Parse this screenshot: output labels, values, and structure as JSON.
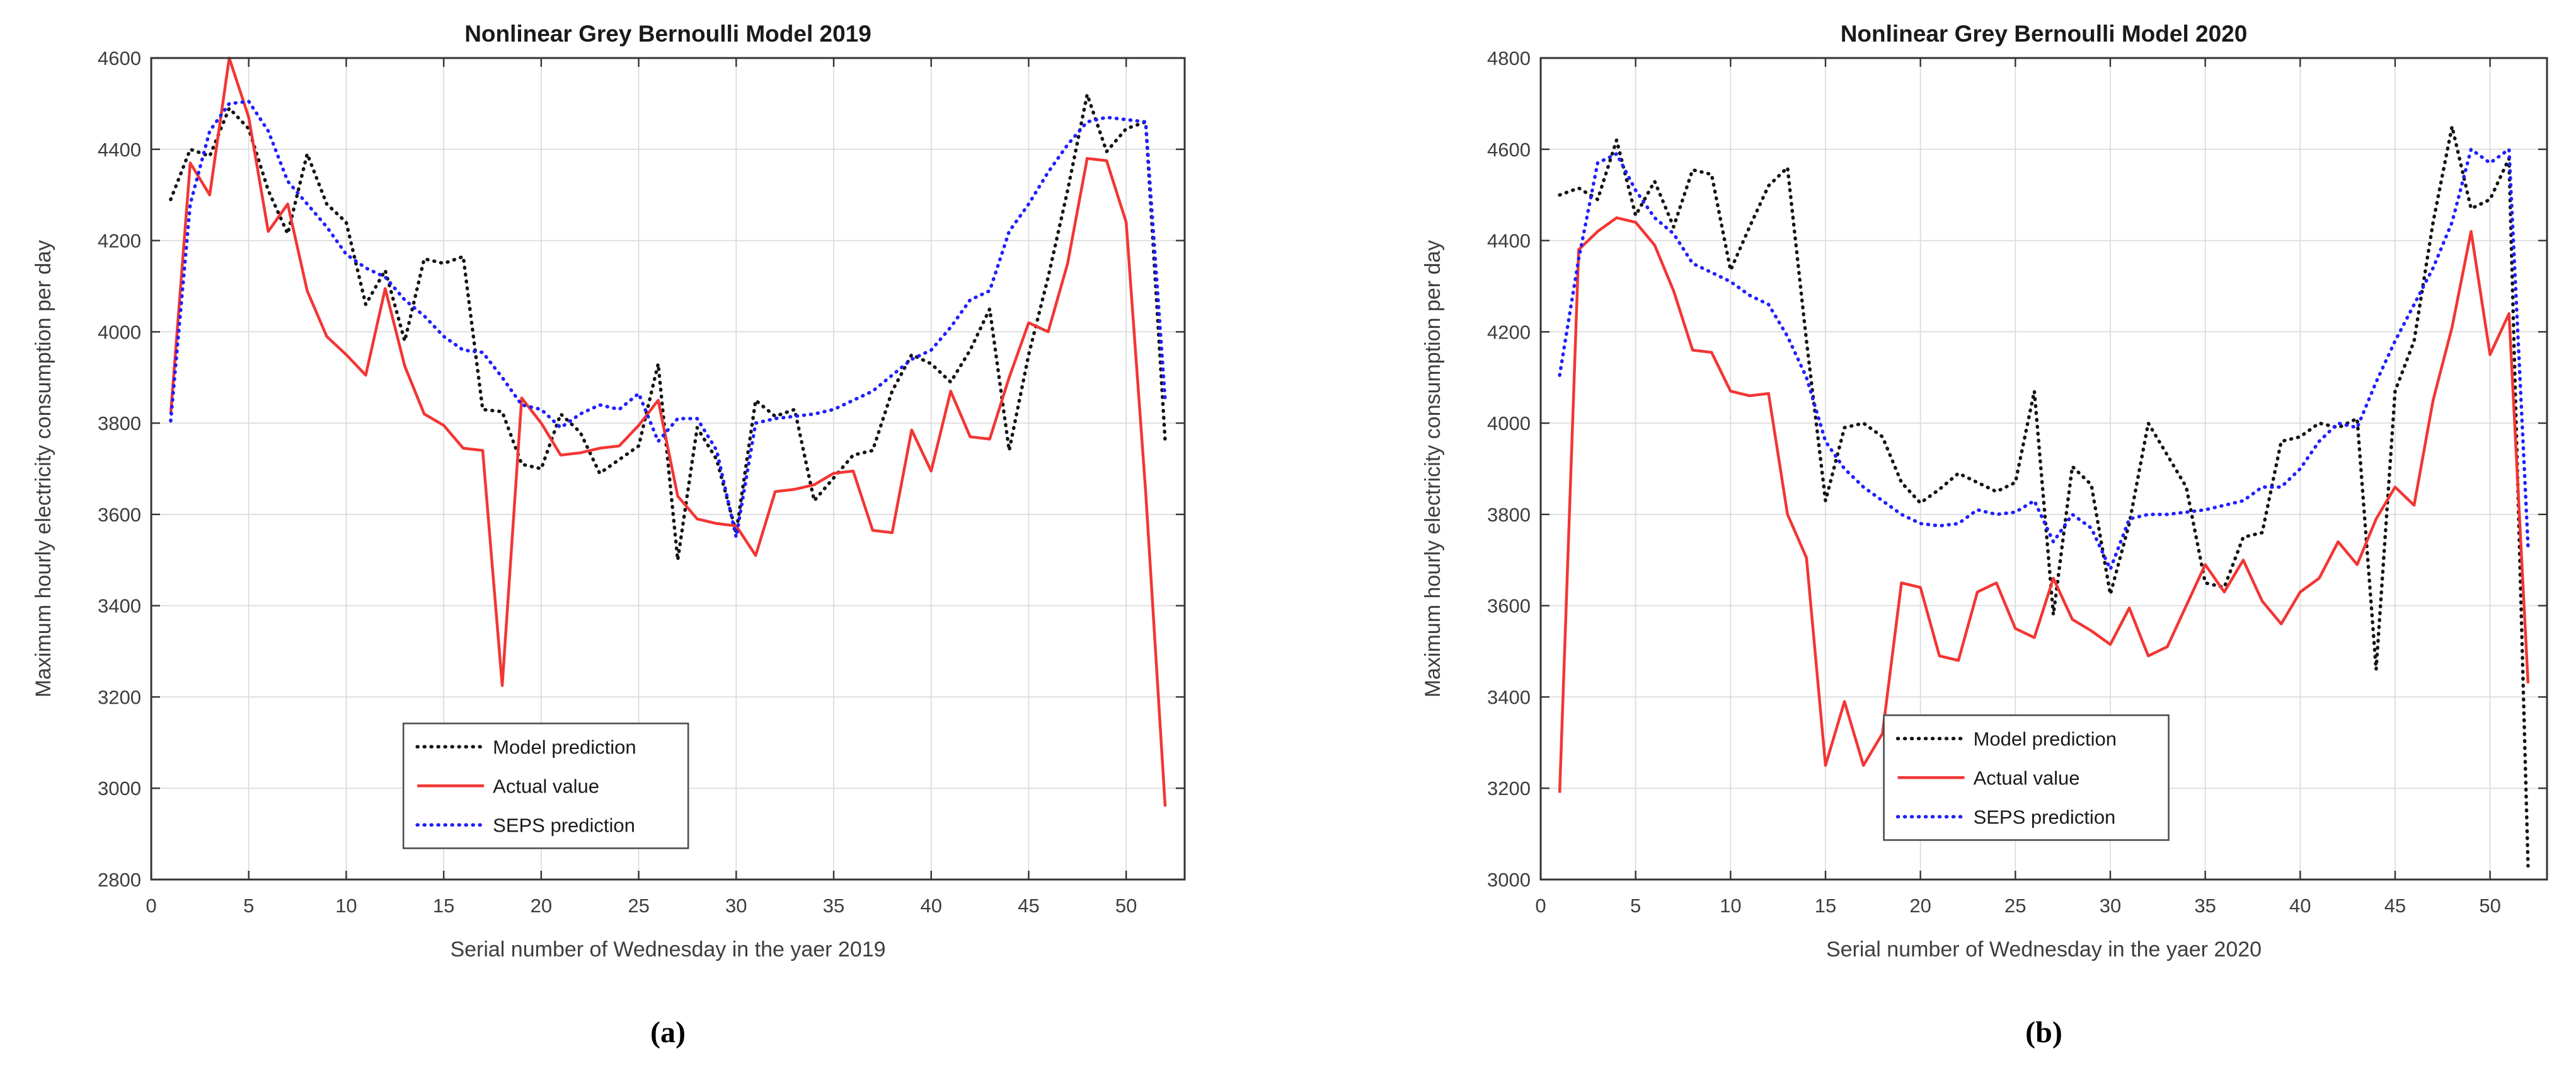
{
  "page": {
    "background": "#ffffff"
  },
  "figure": {
    "captions": [
      "(a)",
      "(b)"
    ]
  },
  "style_tokens": {
    "axis_color": "#333333",
    "tick_label_color": "#3d3d3d",
    "grid_color": "#d9d9d9",
    "title_color": "#1a1a1a",
    "legend_border_color": "#4d4d4d",
    "model_color": "#141414",
    "actual_color": "#f23634",
    "seps_color": "#1f1fff"
  },
  "chart_data": [
    {
      "type": "line",
      "title": "Nonlinear Grey Bernoulli Model 2019",
      "xlabel": "Serial number of Wednesday in the yaer 2019",
      "ylabel": "Maximum hourly electricity consumption per day",
      "caption": "(a)",
      "xlim": [
        0,
        53
      ],
      "ylim": [
        2800,
        4600
      ],
      "xticks": [
        0,
        5,
        10,
        15,
        20,
        25,
        30,
        35,
        40,
        45,
        50
      ],
      "yticks": [
        2800,
        3000,
        3200,
        3400,
        3600,
        3800,
        4000,
        4200,
        4400,
        4600
      ],
      "grid": true,
      "legend_position": "lower-center",
      "legend_frac": {
        "x": 0.244,
        "y": 0.81
      },
      "x": [
        1,
        2,
        3,
        4,
        5,
        6,
        7,
        8,
        9,
        10,
        11,
        12,
        13,
        14,
        15,
        16,
        17,
        18,
        19,
        20,
        21,
        22,
        23,
        24,
        25,
        26,
        27,
        28,
        29,
        30,
        31,
        32,
        33,
        34,
        35,
        36,
        37,
        38,
        39,
        40,
        41,
        42,
        43,
        44,
        45,
        46,
        47,
        48,
        49,
        50,
        51,
        52
      ],
      "series": [
        {
          "name": "Model prediction",
          "style": "dotted",
          "color": "#141414",
          "values": [
            4290,
            4400,
            4385,
            4490,
            4445,
            4310,
            4215,
            4390,
            4280,
            4240,
            4060,
            4135,
            3980,
            4160,
            4150,
            4165,
            3830,
            3825,
            3710,
            3700,
            3820,
            3780,
            3690,
            3720,
            3750,
            3930,
            3500,
            3790,
            3720,
            3560,
            3850,
            3815,
            3830,
            3630,
            3680,
            3730,
            3740,
            3870,
            3950,
            3930,
            3890,
            3960,
            4050,
            3740,
            3950,
            4120,
            4310,
            4520,
            4395,
            4445,
            4460,
            3760
          ]
        },
        {
          "name": "Actual value",
          "style": "solid",
          "color": "#f23634",
          "values": [
            3820,
            4370,
            4300,
            4600,
            4470,
            4220,
            4280,
            4090,
            3990,
            3950,
            3905,
            4095,
            3925,
            3820,
            3795,
            3745,
            3740,
            3225,
            3855,
            3800,
            3730,
            3735,
            3745,
            3750,
            3795,
            3850,
            3640,
            3590,
            3580,
            3575,
            3510,
            3650,
            3655,
            3665,
            3690,
            3695,
            3565,
            3560,
            3785,
            3695,
            3870,
            3770,
            3765,
            3900,
            4020,
            4000,
            4150,
            4380,
            4375,
            4240,
            3650,
            2960
          ]
        },
        {
          "name": "SEPS prediction",
          "style": "dotted",
          "color": "#1f1fff",
          "values": [
            3805,
            4280,
            4440,
            4500,
            4505,
            4440,
            4330,
            4280,
            4230,
            4170,
            4140,
            4120,
            4070,
            4035,
            3990,
            3960,
            3955,
            3900,
            3840,
            3830,
            3790,
            3820,
            3840,
            3830,
            3865,
            3760,
            3810,
            3810,
            3740,
            3550,
            3800,
            3810,
            3815,
            3820,
            3830,
            3850,
            3870,
            3905,
            3940,
            3960,
            4010,
            4070,
            4090,
            4220,
            4280,
            4350,
            4410,
            4460,
            4470,
            4465,
            4460,
            3850
          ]
        }
      ]
    },
    {
      "type": "line",
      "title": "Nonlinear Grey Bernoulli Model 2020",
      "xlabel": "Serial number of Wednesday in the yaer 2020",
      "ylabel": "Maximum hourly electricity consumption per day",
      "caption": "(b)",
      "xlim": [
        0,
        53
      ],
      "ylim": [
        3000,
        4800
      ],
      "xticks": [
        0,
        5,
        10,
        15,
        20,
        25,
        30,
        35,
        40,
        45,
        50
      ],
      "yticks": [
        3000,
        3200,
        3400,
        3600,
        3800,
        4000,
        4200,
        4400,
        4600,
        4800
      ],
      "grid": true,
      "legend_position": "lower-center",
      "legend_frac": {
        "x": 0.341,
        "y": 0.8
      },
      "x": [
        1,
        2,
        3,
        4,
        5,
        6,
        7,
        8,
        9,
        10,
        11,
        12,
        13,
        14,
        15,
        16,
        17,
        18,
        19,
        20,
        21,
        22,
        23,
        24,
        25,
        26,
        27,
        28,
        29,
        30,
        31,
        32,
        33,
        34,
        35,
        36,
        37,
        38,
        39,
        40,
        41,
        42,
        43,
        44,
        45,
        46,
        47,
        48,
        49,
        50,
        51,
        52
      ],
      "series": [
        {
          "name": "Model prediction",
          "style": "dotted",
          "color": "#141414",
          "values": [
            4500,
            4515,
            4490,
            4620,
            4455,
            4530,
            4430,
            4555,
            4545,
            4335,
            4430,
            4520,
            4560,
            4180,
            3830,
            3990,
            4000,
            3970,
            3870,
            3825,
            3855,
            3890,
            3870,
            3850,
            3870,
            4070,
            3580,
            3905,
            3865,
            3625,
            3780,
            4000,
            3930,
            3860,
            3650,
            3640,
            3750,
            3760,
            3960,
            3970,
            4000,
            3990,
            4010,
            3460,
            4070,
            4180,
            4440,
            4650,
            4470,
            4490,
            4580,
            3030
          ]
        },
        {
          "name": "Actual value",
          "style": "solid",
          "color": "#f23634",
          "values": [
            3190,
            4380,
            4420,
            4450,
            4440,
            4390,
            4290,
            4160,
            4155,
            4070,
            4060,
            4065,
            3800,
            3705,
            3250,
            3390,
            3250,
            3320,
            3650,
            3640,
            3490,
            3480,
            3630,
            3650,
            3550,
            3530,
            3660,
            3570,
            3545,
            3515,
            3595,
            3490,
            3510,
            3600,
            3690,
            3630,
            3700,
            3610,
            3560,
            3630,
            3660,
            3740,
            3690,
            3790,
            3860,
            3820,
            4050,
            4210,
            4420,
            4150,
            4240,
            3430
          ]
        },
        {
          "name": "SEPS prediction",
          "style": "dotted",
          "color": "#1f1fff",
          "values": [
            4105,
            4360,
            4570,
            4590,
            4510,
            4450,
            4415,
            4350,
            4330,
            4310,
            4280,
            4260,
            4190,
            4100,
            3960,
            3900,
            3860,
            3830,
            3800,
            3780,
            3775,
            3780,
            3810,
            3800,
            3805,
            3830,
            3740,
            3800,
            3770,
            3680,
            3790,
            3800,
            3800,
            3805,
            3810,
            3820,
            3830,
            3860,
            3860,
            3900,
            3960,
            4000,
            3990,
            4090,
            4180,
            4260,
            4340,
            4440,
            4600,
            4570,
            4600,
            3730
          ]
        }
      ]
    }
  ]
}
